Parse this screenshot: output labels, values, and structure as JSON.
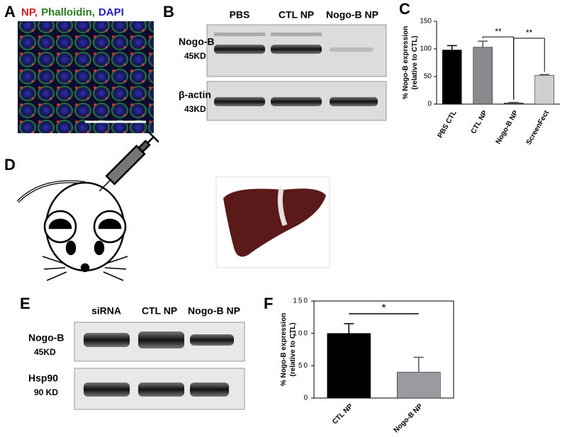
{
  "panels": {
    "a": {
      "label": "A",
      "stains": [
        {
          "text": "NP,",
          "color": "#d42020"
        },
        {
          "text": "Phalloidin,",
          "color": "#2a7a1a"
        },
        {
          "text": "DAPI",
          "color": "#2020c8"
        }
      ]
    },
    "b": {
      "label": "B",
      "lanes": [
        "PBS",
        "CTL NP",
        "Nogo-B NP"
      ],
      "rows": [
        {
          "name": "Nogo-B",
          "size": "45KD"
        },
        {
          "name": "β-actin",
          "size": "43KD"
        }
      ]
    },
    "c": {
      "label": "C"
    },
    "d": {
      "label": "D"
    },
    "e": {
      "label": "E",
      "lanes": [
        "siRNA",
        "CTL NP",
        "Nogo-B NP"
      ],
      "rows": [
        {
          "name": "Nogo-B",
          "size": "45KD"
        },
        {
          "name": "Hsp90",
          "size": "90 KD"
        }
      ]
    },
    "f": {
      "label": "F"
    }
  },
  "chart_data": [
    {
      "type": "bar",
      "y_label": [
        "% Nogo-B expression",
        "(relative to CTL)"
      ],
      "categories": [
        "PBS CTL",
        "CTL NP",
        "Nogo-B NP",
        "ScreenFect"
      ],
      "values": [
        98,
        103,
        2,
        52
      ],
      "errors": [
        8,
        11,
        1,
        1.5
      ],
      "colors": [
        "#000000",
        "#8a8a8e",
        "#555555",
        "#cfcfcf"
      ],
      "ylim": [
        0,
        150
      ],
      "yticks": [
        0,
        50,
        100,
        150
      ],
      "annotations": [
        {
          "text": "**",
          "from": 1,
          "to": 2
        },
        {
          "text": "**",
          "from": 2,
          "to": 3
        }
      ]
    },
    {
      "type": "bar",
      "y_label": [
        "% Nogo-B expression",
        "(relative to CTL)"
      ],
      "categories": [
        "CTL NP",
        "Nogo-B NP"
      ],
      "values": [
        100,
        40
      ],
      "errors": [
        15,
        23
      ],
      "colors": [
        "#000000",
        "#9a9aa0"
      ],
      "ylim": [
        0,
        150
      ],
      "yticks": [
        0,
        50,
        100,
        150
      ],
      "frame": true,
      "annotations": [
        {
          "text": "*",
          "from": 0,
          "to": 1
        }
      ]
    }
  ]
}
